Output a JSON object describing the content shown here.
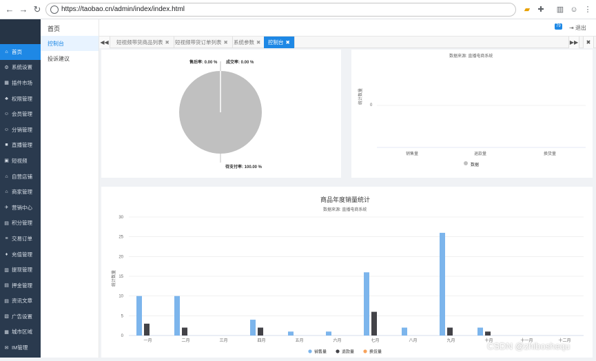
{
  "browser": {
    "url": "https://taobao.cn/admin/index/index.html"
  },
  "sidebar": {
    "items": [
      {
        "label": "首页",
        "icon": "home-icon",
        "glyph": "⌂"
      },
      {
        "label": "系统设置",
        "icon": "gear-icon",
        "glyph": "⚙"
      },
      {
        "label": "插件市场",
        "icon": "plugin-icon",
        "glyph": "▦"
      },
      {
        "label": "权限管理",
        "icon": "sitemap-icon",
        "glyph": "♣"
      },
      {
        "label": "会员管理",
        "icon": "users-icon",
        "glyph": "☺"
      },
      {
        "label": "分销管理",
        "icon": "share-icon",
        "glyph": "☺"
      },
      {
        "label": "直播管理",
        "icon": "video-icon",
        "glyph": "■"
      },
      {
        "label": "短视频",
        "icon": "film-icon",
        "glyph": "▣"
      },
      {
        "label": "自营店铺",
        "icon": "store-icon",
        "glyph": "⌂"
      },
      {
        "label": "商家管理",
        "icon": "bank-icon",
        "glyph": "⌂"
      },
      {
        "label": "营销中心",
        "icon": "rocket-icon",
        "glyph": "✈"
      },
      {
        "label": "积分管理",
        "icon": "points-icon",
        "glyph": "▤"
      },
      {
        "label": "交易订单",
        "icon": "order-icon",
        "glyph": "≡"
      },
      {
        "label": "充值管理",
        "icon": "recharge-icon",
        "glyph": "♦"
      },
      {
        "label": "提现管理",
        "icon": "withdraw-icon",
        "glyph": "▥"
      },
      {
        "label": "押金管理",
        "icon": "deposit-icon",
        "glyph": "▤"
      },
      {
        "label": "资讯文章",
        "icon": "article-icon",
        "glyph": "▤"
      },
      {
        "label": "广告设置",
        "icon": "ad-icon",
        "glyph": "▧"
      },
      {
        "label": "城市区域",
        "icon": "region-icon",
        "glyph": "▦"
      },
      {
        "label": "IM管理",
        "icon": "chat-icon",
        "glyph": "✉"
      }
    ],
    "active_index": 0,
    "active_color": "#1e88e5",
    "bg_color": "#2a3a4e"
  },
  "subnav": {
    "title": "首页",
    "items": [
      "控制台",
      "投诉建议"
    ]
  },
  "topbar": {
    "badge": "79",
    "logout": "退出"
  },
  "tabs": [
    {
      "label": "短视频带货商品列表",
      "active": false
    },
    {
      "label": "短视频带货订单列表",
      "active": false
    },
    {
      "label": "系统参数",
      "active": false
    },
    {
      "label": "控制台",
      "active": true
    }
  ],
  "pie": {
    "label_returns": "售后率: 0.00 %",
    "label_deals": "成交率: 0.00 %",
    "label_unpaid": "待支付率: 100.00 %",
    "color": "#c0c0c0"
  },
  "chart_small": {
    "source": "数据来源: 直播电商系统",
    "ylabel": "统计数量",
    "ytick": "0",
    "categories": [
      "销售量",
      "退款量",
      "换货量"
    ],
    "legend": "数据"
  },
  "chart_data": {
    "type": "bar",
    "title": "商品年度销量统计",
    "subtitle": "数据来源: 直播电商系统",
    "ylabel": "统计数量",
    "xlabel": "",
    "ylim": [
      0,
      30
    ],
    "yticks": [
      "0",
      "5",
      "10",
      "15",
      "20",
      "25",
      "30"
    ],
    "categories": [
      "一月",
      "二月",
      "三月",
      "四月",
      "五月",
      "六月",
      "七月",
      "八月",
      "九月",
      "十月",
      "十一月",
      "十二月"
    ],
    "series": [
      {
        "name": "销售量",
        "color": "#7cb5ec",
        "values": [
          10,
          10,
          0,
          4,
          1,
          1,
          16,
          2,
          26,
          2,
          0,
          0
        ]
      },
      {
        "name": "退款量",
        "color": "#434348",
        "values": [
          3,
          2,
          0,
          2,
          0,
          0,
          6,
          0,
          2,
          1,
          0,
          0
        ]
      },
      {
        "name": "换货量",
        "color": "#f7a35c",
        "values": [
          0,
          0,
          0,
          0,
          0,
          0,
          0,
          0,
          0,
          0,
          0,
          0
        ]
      }
    ]
  },
  "watermark": "CSDN @zhiboshequ"
}
